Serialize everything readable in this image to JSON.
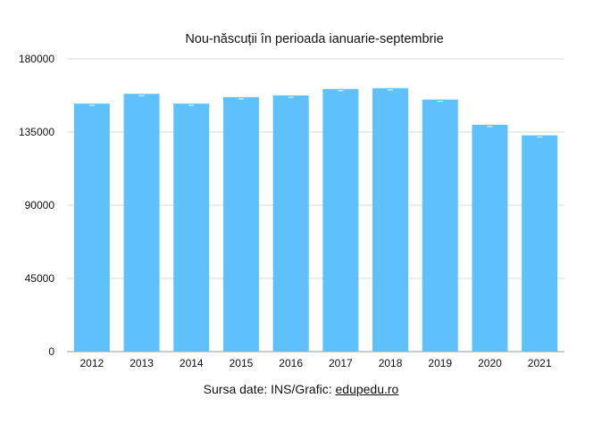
{
  "chart_data": {
    "type": "bar",
    "title": "Nou-născuții în perioada ianuarie-septembrie",
    "xlabel": "",
    "ylabel": "",
    "categories": [
      "2012",
      "2013",
      "2014",
      "2015",
      "2016",
      "2017",
      "2018",
      "2019",
      "2020",
      "2021"
    ],
    "values": [
      152500,
      158500,
      152500,
      156500,
      157500,
      161500,
      162000,
      155000,
      139500,
      133000
    ],
    "ylim": [
      0,
      180000
    ],
    "yticks": [
      "0",
      "45000",
      "90000",
      "135000",
      "180000"
    ],
    "grid": true,
    "legend": "none",
    "bar_color": "#5ec1fb",
    "grid_color": "#d9d9d9"
  },
  "footer": {
    "source_prefix": "Sursa date: INS/Grafic: ",
    "source_link": "edupedu.ro"
  }
}
